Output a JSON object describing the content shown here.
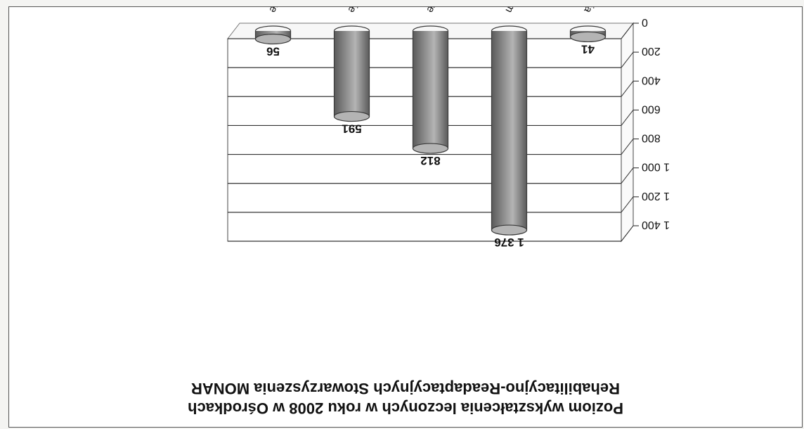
{
  "chart_data": {
    "type": "bar",
    "style": "3d-cylinder",
    "title_lines": [
      "Poziom wykształcenia leczonych w roku 2008 w Ośrodkach",
      "Rehabilitacyjno-Readaptacyjnych Stowarzyszenia MONAR"
    ],
    "categories": [
      "bez wykształcenia",
      "podstawowe/gimnazjum",
      "zawodowe",
      "średnie",
      "wyższe"
    ],
    "values": [
      41,
      1376,
      812,
      591,
      56
    ],
    "value_labels": [
      "41",
      "1 376",
      "812",
      "591",
      "56"
    ],
    "ylim": [
      0,
      1400
    ],
    "y_ticks": [
      {
        "value": 0,
        "label": "0"
      },
      {
        "value": 200,
        "label": "200"
      },
      {
        "value": 400,
        "label": "400"
      },
      {
        "value": 600,
        "label": "600"
      },
      {
        "value": 800,
        "label": "800"
      },
      {
        "value": 1000,
        "label": "1 000"
      },
      {
        "value": 1200,
        "label": "1 200"
      },
      {
        "value": 1400,
        "label": "1 400"
      }
    ],
    "grid": true,
    "legend": "none",
    "orientation": "image rotated 180 degrees",
    "colors": {
      "bar": "#8c8c8c",
      "bar_dark": "#5a5a5a",
      "bar_light": "#b4b4b4",
      "grid": "#333333",
      "background": "#ffffff"
    }
  }
}
